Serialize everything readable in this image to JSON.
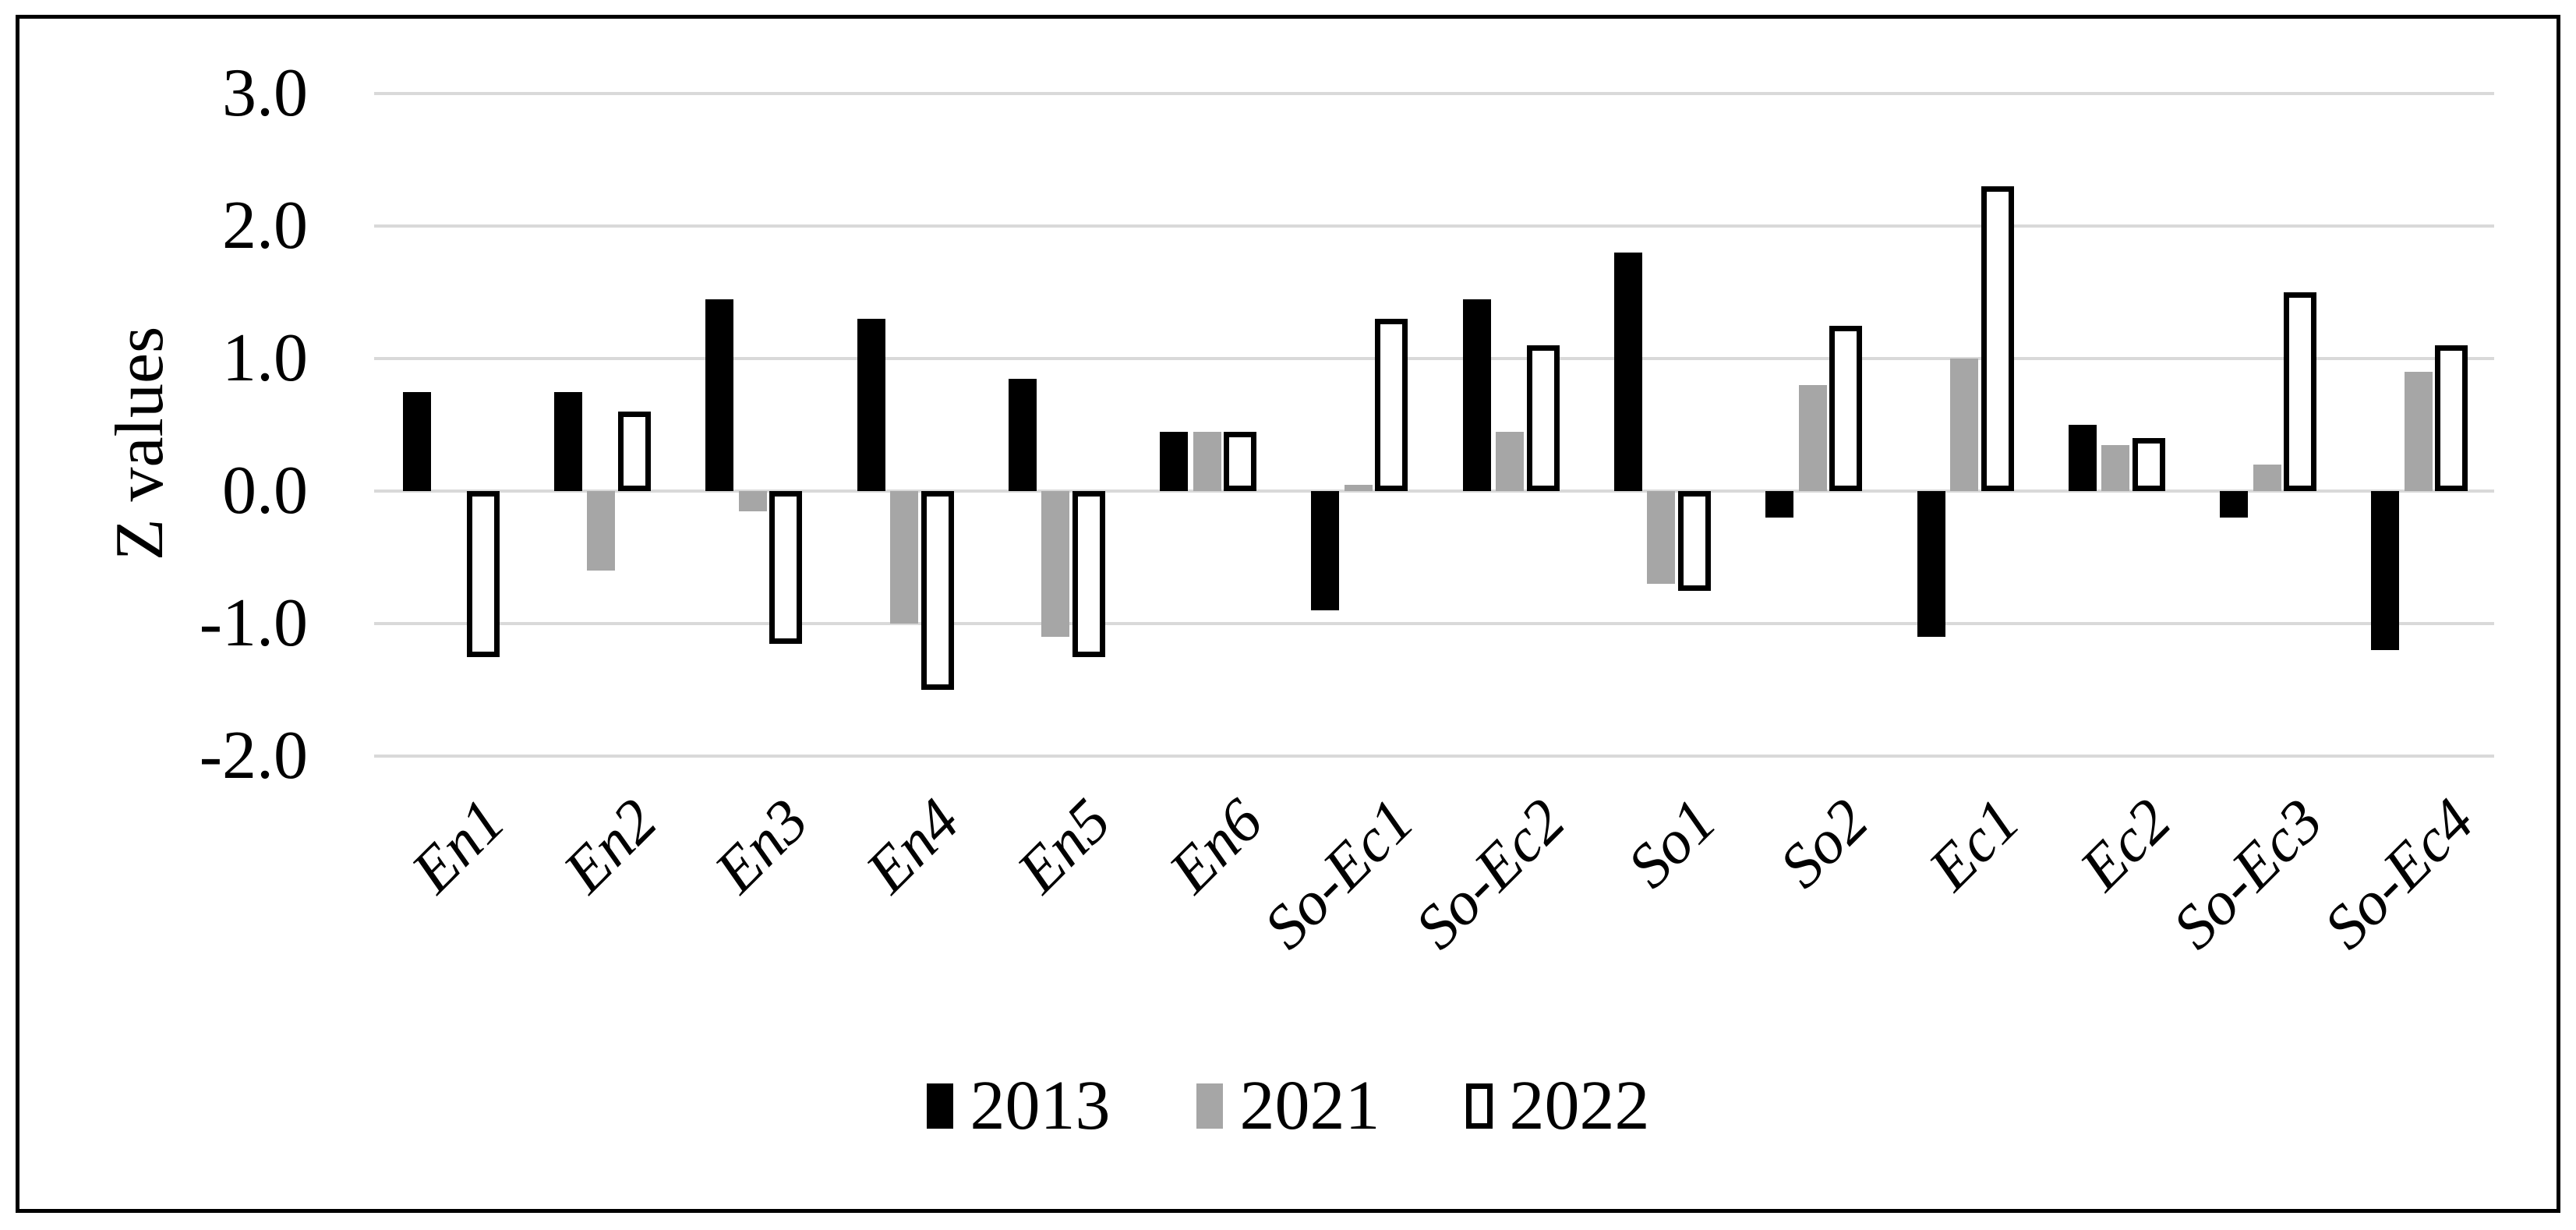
{
  "chart_data": {
    "type": "bar",
    "title": "",
    "xlabel": "",
    "ylabel": "Z values",
    "categories": [
      "En1",
      "En2",
      "En3",
      "En4",
      "En5",
      "En6",
      "So-Ec1",
      "So-Ec2",
      "So1",
      "So2",
      "Ec1",
      "Ec2",
      "So-Ec3",
      "So-Ec4"
    ],
    "series": [
      {
        "name": "2013",
        "style": "solid",
        "color": "#000000",
        "values": [
          0.75,
          0.75,
          1.45,
          1.3,
          0.85,
          0.45,
          -0.9,
          1.45,
          1.8,
          -0.2,
          -1.1,
          0.5,
          -0.2,
          -1.2
        ]
      },
      {
        "name": "2021",
        "style": "solid",
        "color": "#a6a6a6",
        "values": [
          0.0,
          -0.6,
          -0.15,
          -1.0,
          -1.1,
          0.45,
          0.05,
          0.45,
          -0.7,
          0.8,
          1.0,
          0.35,
          0.2,
          0.9
        ]
      },
      {
        "name": "2022",
        "style": "outline",
        "color": "#ffffff",
        "border_color": "#000000",
        "values": [
          -1.25,
          0.6,
          -1.15,
          -1.5,
          -1.25,
          0.45,
          1.3,
          1.1,
          -0.75,
          1.25,
          2.3,
          0.4,
          1.5,
          1.1
        ]
      }
    ],
    "ylim": [
      -2.0,
      3.0
    ],
    "ytick_labels": [
      "3.0",
      "2.0",
      "1.0",
      "0.0",
      "-1.0",
      "-2.0"
    ],
    "ytick_values": [
      3,
      2,
      1,
      0,
      -1,
      -2
    ],
    "grid": true,
    "gridline_color": "#d9d9d9",
    "legend_position": "bottom",
    "legend_entries": [
      "2013",
      "2021",
      "2022"
    ]
  }
}
